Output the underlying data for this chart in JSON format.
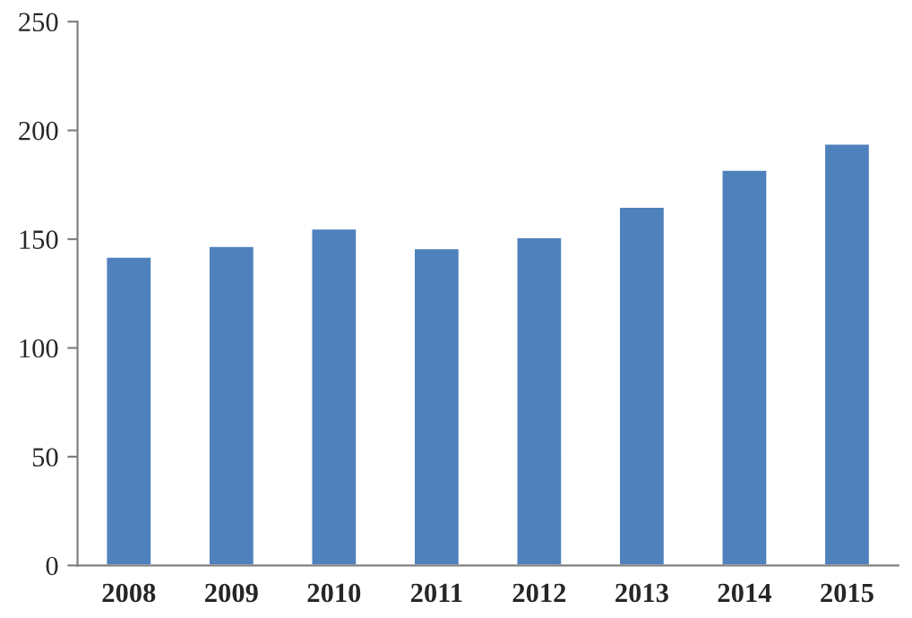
{
  "chart_data": {
    "type": "bar",
    "categories": [
      "2008",
      "2009",
      "2010",
      "2011",
      "2012",
      "2013",
      "2014",
      "2015"
    ],
    "values": [
      142,
      147,
      155,
      146,
      151,
      165,
      182,
      194
    ],
    "color": "#4f81bd",
    "ylim": [
      0,
      250
    ],
    "yticks": [
      0,
      50,
      100,
      150,
      200,
      250
    ],
    "grid": false
  }
}
